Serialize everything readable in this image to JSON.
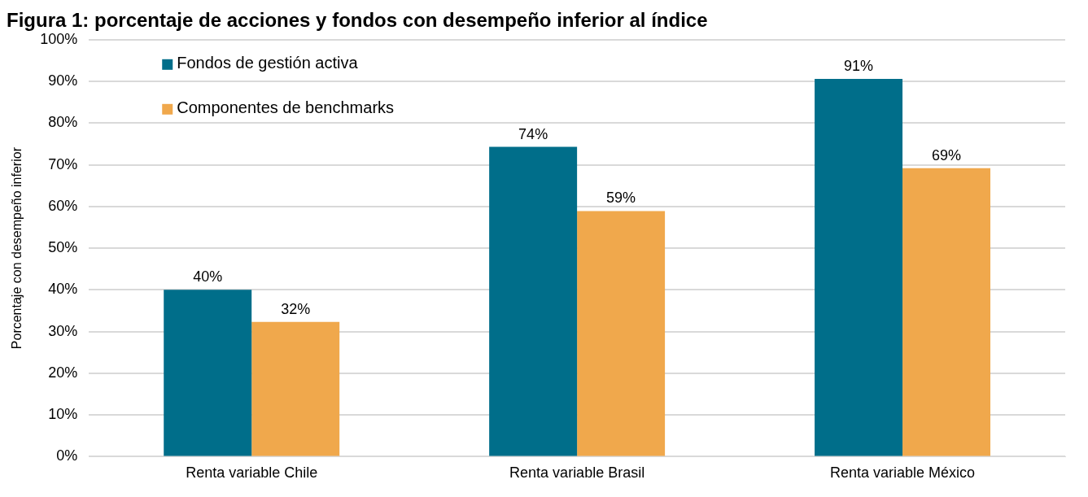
{
  "chart_data": {
    "type": "bar",
    "title": "Figura 1: porcentaje de acciones y fondos con desempeño inferior al índice",
    "ylabel": "Porcentaje con desempeño inferior",
    "categories": [
      "Renta variable Chile",
      "Renta variable Brasil",
      "Renta variable México"
    ],
    "series": [
      {
        "name": "Fondos de gestión activa",
        "color": "#006e8a",
        "values": [
          40,
          74.3,
          90.6
        ],
        "value_labels": [
          "40%",
          "74%",
          "91%"
        ]
      },
      {
        "name": "Componentes de benchmarks",
        "color": "#f0a84c",
        "values": [
          32.3,
          58.9,
          69.2
        ],
        "value_labels": [
          "32%",
          "59%",
          "69%"
        ]
      }
    ],
    "ylim": [
      0,
      100
    ],
    "yticks": [
      {
        "value": 0,
        "label": "0%"
      },
      {
        "value": 10,
        "label": "10%"
      },
      {
        "value": 20,
        "label": "20%"
      },
      {
        "value": 30,
        "label": "30%"
      },
      {
        "value": 40,
        "label": "40%"
      },
      {
        "value": 50,
        "label": "50%"
      },
      {
        "value": 60,
        "label": "60%"
      },
      {
        "value": 70,
        "label": "70%"
      },
      {
        "value": 80,
        "label": "80%"
      },
      {
        "value": 90,
        "label": "90%"
      },
      {
        "value": 100,
        "label": "100%"
      }
    ],
    "grid": "y",
    "legend": "top left"
  }
}
